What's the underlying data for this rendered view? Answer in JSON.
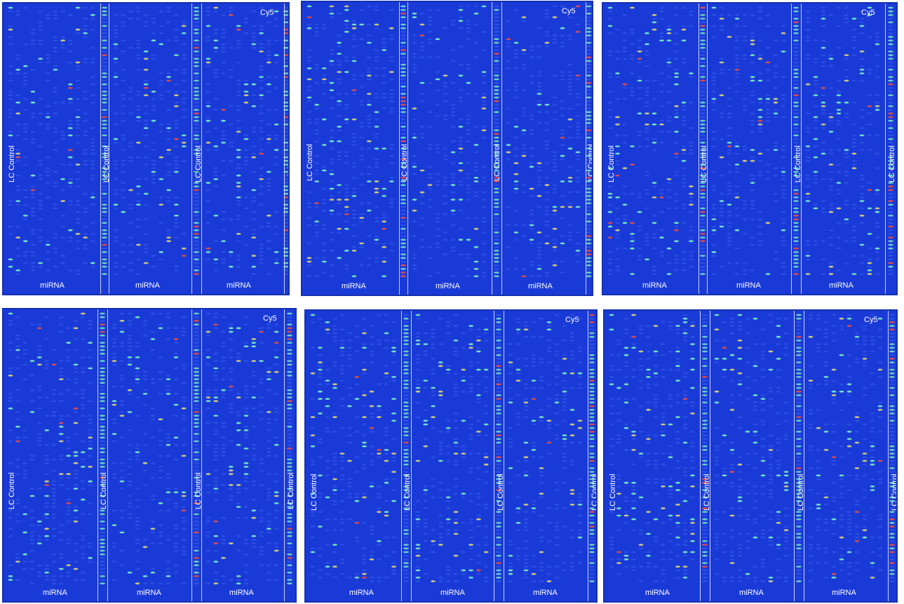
{
  "channel_label": "Cy5",
  "lc_label": "LC Control",
  "mirna_label": "miRNA",
  "colors": {
    "background": "#1a3ad8",
    "spot_dim": "#3b66f0",
    "spot_green": "#7df0c0",
    "spot_yellow": "#e8e070",
    "spot_red": "#e85040",
    "divider": "#e8ecff"
  },
  "panels": [
    {
      "id": "top-left"
    },
    {
      "id": "top-middle"
    },
    {
      "id": "top-right"
    },
    {
      "id": "bottom-left"
    },
    {
      "id": "bottom-middle"
    },
    {
      "id": "bottom-right"
    }
  ]
}
